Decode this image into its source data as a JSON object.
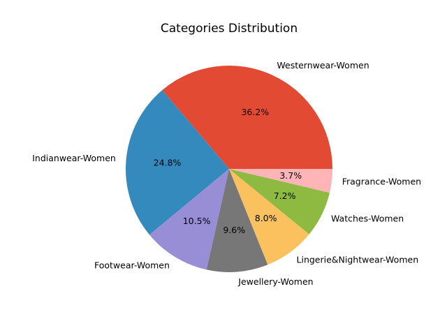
{
  "chart_data": {
    "type": "pie",
    "title": "Categories Distribution",
    "categories": [
      "Westernwear-Women",
      "Indianwear-Women",
      "Footwear-Women",
      "Jewellery-Women",
      "Lingerie&Nightwear-Women",
      "Watches-Women",
      "Fragrance-Women"
    ],
    "values": [
      36.2,
      24.8,
      10.5,
      9.6,
      8.0,
      7.2,
      3.7
    ],
    "value_labels": [
      "36.2%",
      "24.8%",
      "10.5%",
      "9.6%",
      "8.0%",
      "7.2%",
      "3.7%"
    ],
    "colors": [
      "#e24a33",
      "#348abd",
      "#988ed5",
      "#777777",
      "#fbc15e",
      "#8eba42",
      "#ffb5b8"
    ],
    "start_angle_deg": 0,
    "direction": "counterclockwise",
    "legend": "none"
  }
}
